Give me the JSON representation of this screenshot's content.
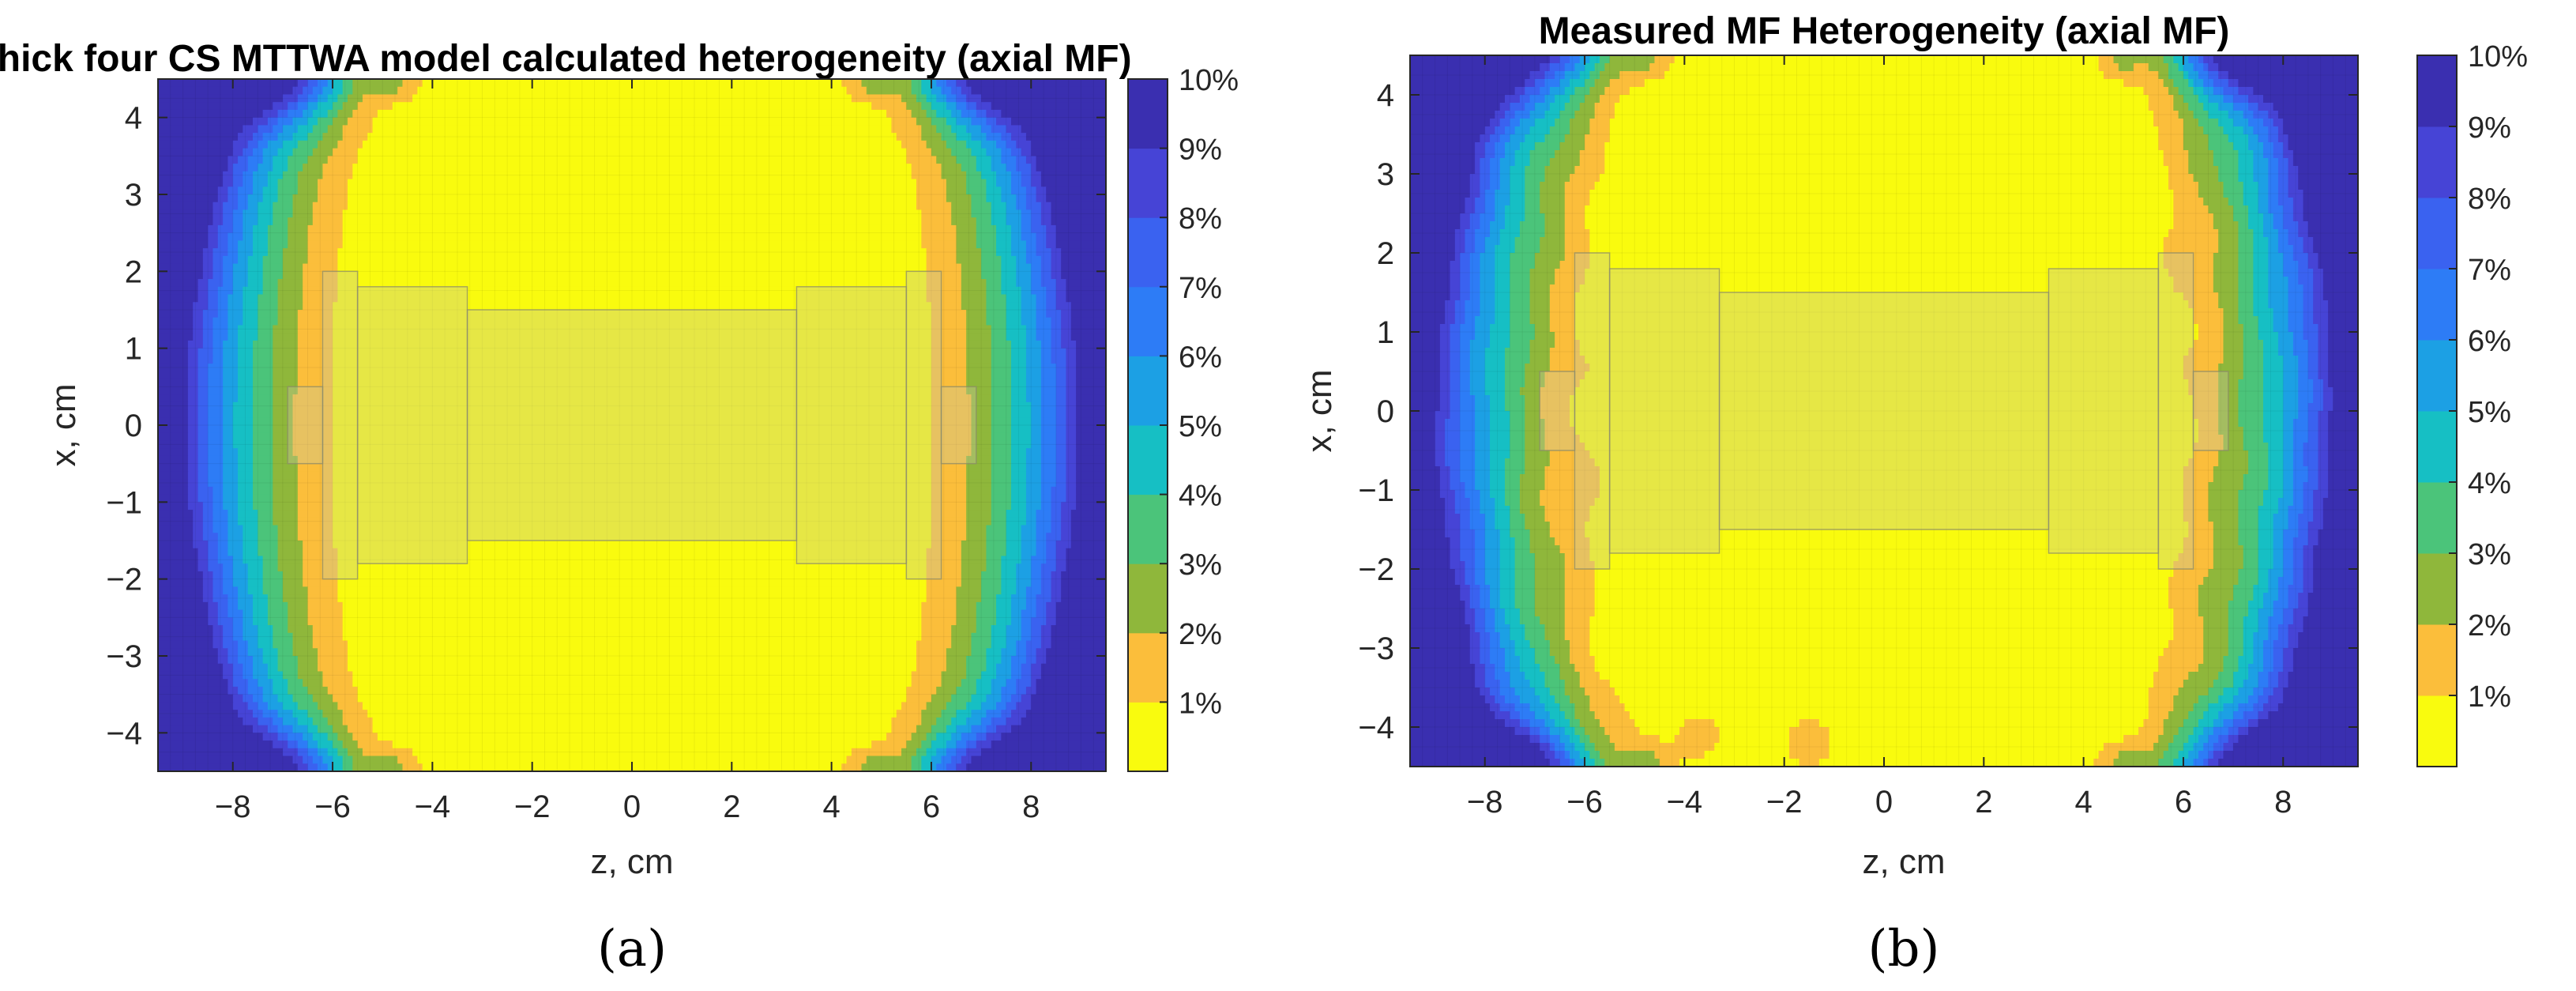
{
  "chart_data": [
    {
      "type": "heatmap",
      "style": "filled-contour",
      "title": "Thick four CS MTTWA model calculated heterogeneity (axial MF)",
      "xlabel": "z, cm",
      "ylabel": "x, cm",
      "xlim": [
        -9.5,
        9.5
      ],
      "ylim": [
        -4.5,
        4.5
      ],
      "xticks": [
        -8,
        -6,
        -4,
        -2,
        0,
        2,
        4,
        6,
        8
      ],
      "xtick_labels": [
        "−8",
        "−6",
        "−4",
        "−2",
        "0",
        "2",
        "4",
        "6",
        "8"
      ],
      "yticks": [
        4,
        3,
        2,
        1,
        0,
        -1,
        -2,
        -3,
        -4
      ],
      "ytick_labels": [
        "4",
        "3",
        "2",
        "1",
        "0",
        "−1",
        "−2",
        "−3",
        "−4"
      ],
      "grid": true,
      "colorbar": {
        "range": [
          0,
          10
        ],
        "ticks": [
          1,
          2,
          3,
          4,
          5,
          6,
          7,
          8,
          9,
          10
        ],
        "tick_labels": [
          "1%",
          "2%",
          "3%",
          "4%",
          "5%",
          "6%",
          "7%",
          "8%",
          "9%",
          "10%"
        ]
      },
      "contour_levels_percent": [
        1,
        2,
        3,
        4,
        5,
        6,
        7,
        8,
        9,
        10
      ],
      "overlay": "translucent coil outline (z from -6.2 to 6.2 cm, x from -2 to 2 cm)",
      "caption": "(a)"
    },
    {
      "type": "heatmap",
      "style": "filled-contour",
      "title": "Measured MF Heterogeneity (axial MF)",
      "xlabel": "z, cm",
      "ylabel": "x, cm",
      "xlim": [
        -9.5,
        9.5
      ],
      "ylim": [
        -4.5,
        4.5
      ],
      "xticks": [
        -8,
        -6,
        -4,
        -2,
        0,
        2,
        4,
        6,
        8
      ],
      "xtick_labels": [
        "−8",
        "−6",
        "−4",
        "−2",
        "0",
        "2",
        "4",
        "6",
        "8"
      ],
      "yticks": [
        4,
        3,
        2,
        1,
        0,
        -1,
        -2,
        -3,
        -4
      ],
      "ytick_labels": [
        "4",
        "3",
        "2",
        "1",
        "0",
        "−1",
        "−2",
        "−3",
        "−4"
      ],
      "grid": true,
      "colorbar": {
        "range": [
          0,
          10
        ],
        "ticks": [
          1,
          2,
          3,
          4,
          5,
          6,
          7,
          8,
          9,
          10
        ],
        "tick_labels": [
          "1%",
          "2%",
          "3%",
          "4%",
          "5%",
          "6%",
          "7%",
          "8%",
          "9%",
          "10%"
        ]
      },
      "contour_levels_percent": [
        1,
        2,
        3,
        4,
        5,
        6,
        7,
        8,
        9,
        10
      ],
      "overlay": "translucent coil outline (z from -6.2 to 6.2 cm, x from -2 to 2 cm)",
      "caption": "(b)"
    }
  ],
  "palette": {
    "band_1": "#f9fb0e",
    "band_2": "#fbbe3b",
    "band_3": "#8fb73b",
    "band_4": "#4bc47a",
    "band_5": "#16bfc4",
    "band_6": "#1ca0e4",
    "band_7": "#2d7cf6",
    "band_8": "#3a62f0",
    "band_9": "#4644d6",
    "band_10": "#3a2fb0",
    "contour_line": "#1a1a1a",
    "coil_fill": "#c8c8a0",
    "coil_stroke": "#8a8a6a"
  }
}
